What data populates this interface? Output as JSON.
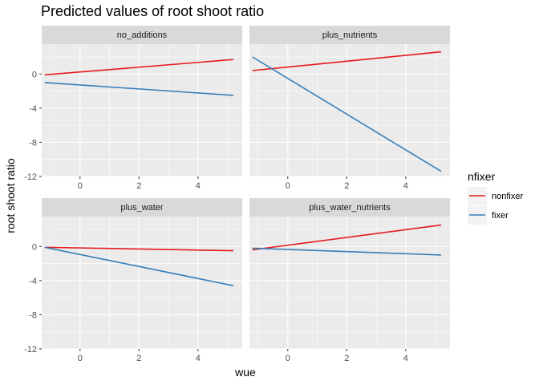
{
  "chart_data": {
    "type": "line",
    "title": "Predicted values of root shoot ratio",
    "xlabel": "wue",
    "ylabel": "root shoot ratio",
    "xlim": [
      -1.3,
      5.5
    ],
    "ylim": [
      -12,
      3.5
    ],
    "x_ticks": [
      0,
      2,
      4
    ],
    "y_ticks": [
      0,
      -4,
      -8,
      -12
    ],
    "grid": true,
    "legend": {
      "title": "nfixer",
      "position": "right"
    },
    "series_style": [
      {
        "name": "nonfixer",
        "color": "#e41a1c"
      },
      {
        "name": "fixer",
        "color": "#377eb8"
      }
    ],
    "panels": [
      {
        "label": "no_additions",
        "series": [
          {
            "name": "nonfixer",
            "x": [
              -1.2,
              5.2
            ],
            "y": [
              -0.1,
              1.7
            ]
          },
          {
            "name": "fixer",
            "x": [
              -1.2,
              5.2
            ],
            "y": [
              -1.0,
              -2.5
            ]
          }
        ]
      },
      {
        "label": "plus_nutrients",
        "series": [
          {
            "name": "nonfixer",
            "x": [
              -1.2,
              5.2
            ],
            "y": [
              0.4,
              2.6
            ]
          },
          {
            "name": "fixer",
            "x": [
              -1.2,
              5.2
            ],
            "y": [
              2.0,
              -11.4
            ]
          }
        ]
      },
      {
        "label": "plus_water",
        "series": [
          {
            "name": "nonfixer",
            "x": [
              -1.2,
              5.2
            ],
            "y": [
              -0.1,
              -0.5
            ]
          },
          {
            "name": "fixer",
            "x": [
              -1.2,
              5.2
            ],
            "y": [
              -0.1,
              -4.6
            ]
          }
        ]
      },
      {
        "label": "plus_water_nutrients",
        "series": [
          {
            "name": "nonfixer",
            "x": [
              -1.2,
              5.2
            ],
            "y": [
              -0.4,
              2.5
            ]
          },
          {
            "name": "fixer",
            "x": [
              -1.2,
              5.2
            ],
            "y": [
              -0.2,
              -1.0
            ]
          }
        ]
      }
    ]
  }
}
